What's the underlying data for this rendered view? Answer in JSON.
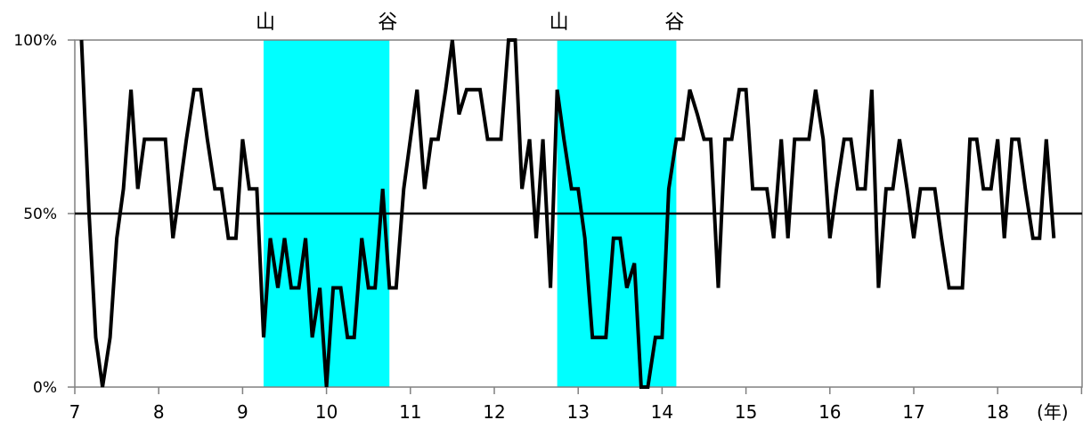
{
  "chart_data": {
    "type": "line",
    "title": "",
    "xlabel": "",
    "x_unit": "(年)",
    "ylabel": "",
    "ylim": [
      0,
      100
    ],
    "xlim": [
      7,
      18.7
    ],
    "y_ticks": [
      "0%",
      "50%",
      "100%"
    ],
    "x_ticks": [
      "7",
      "8",
      "9",
      "10",
      "11",
      "12",
      "13",
      "14",
      "15",
      "16",
      "17",
      "18"
    ],
    "reference_line": 50,
    "shaded_periods": [
      {
        "start": 9.25,
        "end": 10.75,
        "start_label": "山",
        "end_label": "谷",
        "color": "#00ffff"
      },
      {
        "start": 12.75,
        "end": 14.17,
        "start_label": "山",
        "end_label": "谷",
        "color": "#00ffff"
      }
    ],
    "series": [
      {
        "color": "#000000",
        "points": [
          [
            7.08,
            100
          ],
          [
            7.17,
            50
          ],
          [
            7.25,
            14.3
          ],
          [
            7.33,
            0
          ],
          [
            7.42,
            14.3
          ],
          [
            7.5,
            42.9
          ],
          [
            7.58,
            57.1
          ],
          [
            7.67,
            85.7
          ],
          [
            7.75,
            57.1
          ],
          [
            7.83,
            71.4
          ],
          [
            7.92,
            71.4
          ],
          [
            8.0,
            71.4
          ],
          [
            8.08,
            71.4
          ],
          [
            8.17,
            42.9
          ],
          [
            8.25,
            57.1
          ],
          [
            8.33,
            71.4
          ],
          [
            8.42,
            85.7
          ],
          [
            8.5,
            85.7
          ],
          [
            8.58,
            71.4
          ],
          [
            8.67,
            57.1
          ],
          [
            8.75,
            57.1
          ],
          [
            8.83,
            42.9
          ],
          [
            8.92,
            42.9
          ],
          [
            9.0,
            71.4
          ],
          [
            9.08,
            57.1
          ],
          [
            9.17,
            57.1
          ],
          [
            9.25,
            14.3
          ],
          [
            9.33,
            42.9
          ],
          [
            9.42,
            28.6
          ],
          [
            9.5,
            42.9
          ],
          [
            9.58,
            28.6
          ],
          [
            9.67,
            28.6
          ],
          [
            9.75,
            42.9
          ],
          [
            9.83,
            14.3
          ],
          [
            9.92,
            28.6
          ],
          [
            10.0,
            0
          ],
          [
            10.08,
            28.6
          ],
          [
            10.17,
            28.6
          ],
          [
            10.25,
            14.3
          ],
          [
            10.33,
            14.3
          ],
          [
            10.42,
            42.9
          ],
          [
            10.5,
            28.6
          ],
          [
            10.58,
            28.6
          ],
          [
            10.67,
            57.1
          ],
          [
            10.75,
            28.6
          ],
          [
            10.83,
            28.6
          ],
          [
            10.92,
            57.1
          ],
          [
            11.0,
            71.4
          ],
          [
            11.08,
            85.7
          ],
          [
            11.17,
            57.1
          ],
          [
            11.25,
            71.4
          ],
          [
            11.33,
            71.4
          ],
          [
            11.42,
            85.7
          ],
          [
            11.5,
            100
          ],
          [
            11.58,
            78.6
          ],
          [
            11.67,
            85.7
          ],
          [
            11.75,
            85.7
          ],
          [
            11.83,
            85.7
          ],
          [
            11.92,
            71.4
          ],
          [
            12.0,
            71.4
          ],
          [
            12.08,
            71.4
          ],
          [
            12.17,
            100
          ],
          [
            12.25,
            100
          ],
          [
            12.33,
            57.1
          ],
          [
            12.42,
            71.4
          ],
          [
            12.5,
            42.9
          ],
          [
            12.58,
            71.4
          ],
          [
            12.67,
            28.6
          ],
          [
            12.75,
            85.7
          ],
          [
            12.83,
            71.4
          ],
          [
            12.92,
            57.1
          ],
          [
            13.0,
            57.1
          ],
          [
            13.08,
            42.9
          ],
          [
            13.17,
            14.3
          ],
          [
            13.25,
            14.3
          ],
          [
            13.33,
            14.3
          ],
          [
            13.42,
            42.9
          ],
          [
            13.5,
            42.9
          ],
          [
            13.58,
            28.6
          ],
          [
            13.67,
            35.7
          ],
          [
            13.75,
            0
          ],
          [
            13.83,
            0
          ],
          [
            13.92,
            14.3
          ],
          [
            14.0,
            14.3
          ],
          [
            14.08,
            57.1
          ],
          [
            14.17,
            71.4
          ],
          [
            14.25,
            71.4
          ],
          [
            14.33,
            85.7
          ],
          [
            14.42,
            78.6
          ],
          [
            14.5,
            71.4
          ],
          [
            14.58,
            71.4
          ],
          [
            14.67,
            28.6
          ],
          [
            14.75,
            71.4
          ],
          [
            14.83,
            71.4
          ],
          [
            14.92,
            85.7
          ],
          [
            15.0,
            85.7
          ],
          [
            15.08,
            57.1
          ],
          [
            15.17,
            57.1
          ],
          [
            15.25,
            57.1
          ],
          [
            15.33,
            42.9
          ],
          [
            15.42,
            71.4
          ],
          [
            15.5,
            42.9
          ],
          [
            15.58,
            71.4
          ],
          [
            15.67,
            71.4
          ],
          [
            15.75,
            71.4
          ],
          [
            15.83,
            85.7
          ],
          [
            15.92,
            71.4
          ],
          [
            16.0,
            42.9
          ],
          [
            16.08,
            57.1
          ],
          [
            16.17,
            71.4
          ],
          [
            16.25,
            71.4
          ],
          [
            16.33,
            57.1
          ],
          [
            16.42,
            57.1
          ],
          [
            16.5,
            85.7
          ],
          [
            16.58,
            28.6
          ],
          [
            16.67,
            57.1
          ],
          [
            16.75,
            57.1
          ],
          [
            16.83,
            71.4
          ],
          [
            16.92,
            57.1
          ],
          [
            17.0,
            42.9
          ],
          [
            17.08,
            57.1
          ],
          [
            17.17,
            57.1
          ],
          [
            17.25,
            57.1
          ],
          [
            17.33,
            42.9
          ],
          [
            17.42,
            28.6
          ],
          [
            17.5,
            28.6
          ],
          [
            17.58,
            28.6
          ],
          [
            17.67,
            71.4
          ],
          [
            17.75,
            71.4
          ],
          [
            17.83,
            57.1
          ],
          [
            17.92,
            57.1
          ],
          [
            18.0,
            71.4
          ],
          [
            18.08,
            42.9
          ],
          [
            18.17,
            71.4
          ],
          [
            18.25,
            71.4
          ],
          [
            18.33,
            57.1
          ],
          [
            18.42,
            42.9
          ],
          [
            18.5,
            42.9
          ],
          [
            18.58,
            71.4
          ],
          [
            18.67,
            42.9
          ]
        ]
      }
    ]
  }
}
